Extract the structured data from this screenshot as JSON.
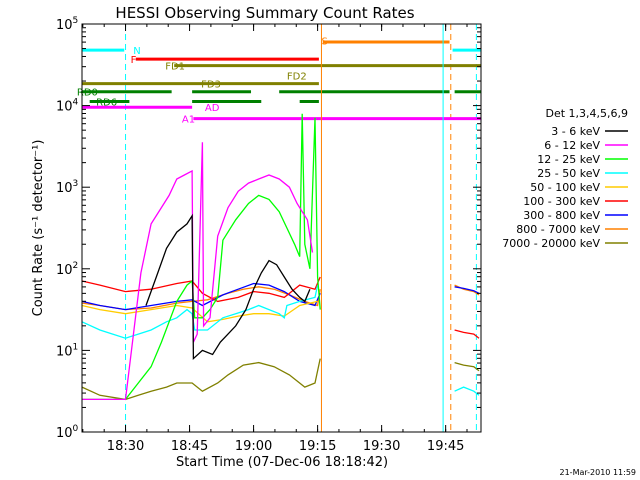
{
  "chart_data": {
    "type": "line",
    "title": "HESSI Observing Summary Count Rates",
    "ylabel": "Count Rate (s⁻¹ detector⁻¹)",
    "xlabel": "Start Time (07-Dec-06 18:18:42)",
    "footer": "21-Mar-2010 11:59",
    "xlim": [
      18.33,
      19.888
    ],
    "ylim_log10": [
      0,
      5
    ],
    "yscale": "log",
    "x_ticks": [
      {
        "value": 18.5,
        "label": "18:30"
      },
      {
        "value": 18.75,
        "label": "18:45"
      },
      {
        "value": 19.0,
        "label": "19:00"
      },
      {
        "value": 19.25,
        "label": "19:15"
      },
      {
        "value": 19.5,
        "label": "19:30"
      },
      {
        "value": 19.75,
        "label": "19:45"
      }
    ],
    "y_ticks": [
      {
        "exp": 0,
        "label": "10",
        "sup": "0"
      },
      {
        "exp": 1,
        "label": "10",
        "sup": "1"
      },
      {
        "exp": 2,
        "label": "10",
        "sup": "2"
      },
      {
        "exp": 3,
        "label": "10",
        "sup": "3"
      },
      {
        "exp": 4,
        "label": "10",
        "sup": "4"
      },
      {
        "exp": 5,
        "label": "10",
        "sup": "5"
      }
    ],
    "legend_header": "Det 1,3,4,5,6,9",
    "legend_position": "right",
    "series": [
      {
        "name": "3 - 6 keV",
        "color": "#000000",
        "points": [
          [
            18.58,
            1.55
          ],
          [
            18.62,
            1.9
          ],
          [
            18.66,
            2.25
          ],
          [
            18.7,
            2.45
          ],
          [
            18.74,
            2.55
          ],
          [
            18.76,
            2.65
          ],
          [
            18.765,
            0.9
          ],
          [
            18.8,
            1.0
          ],
          [
            18.84,
            0.95
          ],
          [
            18.87,
            1.1
          ],
          [
            18.9,
            1.2
          ],
          [
            18.93,
            1.3
          ],
          [
            18.97,
            1.5
          ],
          [
            19.0,
            1.75
          ],
          [
            19.03,
            1.95
          ],
          [
            19.06,
            2.1
          ],
          [
            19.09,
            2.05
          ],
          [
            19.12,
            1.9
          ],
          [
            19.15,
            1.75
          ],
          [
            19.18,
            1.65
          ],
          [
            19.2,
            1.6
          ],
          [
            19.22,
            1.75
          ]
        ]
      },
      {
        "name": "6 - 12 keV",
        "color": "#ff00ff",
        "points": [
          [
            18.33,
            0.4
          ],
          [
            18.5,
            0.4
          ],
          [
            18.56,
            1.95
          ],
          [
            18.6,
            2.55
          ],
          [
            18.64,
            2.75
          ],
          [
            18.67,
            2.9
          ],
          [
            18.7,
            3.1
          ],
          [
            18.73,
            3.15
          ],
          [
            18.76,
            3.2
          ],
          [
            18.765,
            1.1
          ],
          [
            18.78,
            1.2
          ],
          [
            18.8,
            3.55
          ],
          [
            18.805,
            1.3
          ],
          [
            18.83,
            1.4
          ],
          [
            18.86,
            2.4
          ],
          [
            18.9,
            2.75
          ],
          [
            18.94,
            2.95
          ],
          [
            18.98,
            3.05
          ],
          [
            19.02,
            3.1
          ],
          [
            19.06,
            3.15
          ],
          [
            19.1,
            3.1
          ],
          [
            19.14,
            3.0
          ],
          [
            19.17,
            2.8
          ],
          [
            19.19,
            2.7
          ],
          [
            19.21,
            2.6
          ],
          [
            19.23,
            2.2
          ]
        ]
      },
      {
        "name": "12 - 25 keV",
        "color": "#00ff00",
        "points": [
          [
            18.33,
            0.4
          ],
          [
            18.5,
            0.4
          ],
          [
            18.55,
            0.6
          ],
          [
            18.6,
            0.8
          ],
          [
            18.64,
            1.1
          ],
          [
            18.7,
            1.6
          ],
          [
            18.74,
            1.8
          ],
          [
            18.76,
            1.85
          ],
          [
            18.77,
            1.4
          ],
          [
            18.8,
            1.4
          ],
          [
            18.83,
            1.5
          ],
          [
            18.86,
            1.65
          ],
          [
            18.88,
            2.35
          ],
          [
            18.93,
            2.6
          ],
          [
            18.98,
            2.8
          ],
          [
            19.02,
            2.9
          ],
          [
            19.06,
            2.85
          ],
          [
            19.1,
            2.7
          ],
          [
            19.13,
            2.5
          ],
          [
            19.16,
            2.3
          ],
          [
            19.18,
            2.15
          ],
          [
            19.19,
            3.9
          ],
          [
            19.2,
            2.3
          ],
          [
            19.22,
            2.0
          ],
          [
            19.24,
            3.85
          ],
          [
            19.25,
            1.9
          ],
          [
            19.26,
            1.5
          ]
        ]
      },
      {
        "name": "25 - 50 keV",
        "color": "#00ffff",
        "points": [
          [
            18.33,
            1.35
          ],
          [
            18.4,
            1.25
          ],
          [
            18.45,
            1.2
          ],
          [
            18.5,
            1.15
          ],
          [
            18.55,
            1.2
          ],
          [
            18.6,
            1.25
          ],
          [
            18.66,
            1.35
          ],
          [
            18.7,
            1.4
          ],
          [
            18.74,
            1.5
          ],
          [
            18.76,
            1.45
          ],
          [
            18.77,
            1.25
          ],
          [
            18.82,
            1.25
          ],
          [
            18.88,
            1.4
          ],
          [
            18.93,
            1.45
          ],
          [
            18.98,
            1.5
          ],
          [
            19.02,
            1.55
          ],
          [
            19.06,
            1.5
          ],
          [
            19.1,
            1.45
          ],
          [
            19.12,
            1.4
          ],
          [
            19.13,
            1.55
          ],
          [
            19.18,
            1.6
          ],
          [
            19.24,
            1.65
          ],
          [
            19.25,
            1.8
          ]
        ]
      },
      {
        "name": "50 - 100 keV",
        "color": "#ffcc00",
        "points": [
          [
            18.33,
            1.55
          ],
          [
            18.4,
            1.5
          ],
          [
            18.5,
            1.45
          ],
          [
            18.6,
            1.5
          ],
          [
            18.7,
            1.55
          ],
          [
            18.76,
            1.52
          ],
          [
            18.82,
            1.35
          ],
          [
            18.88,
            1.38
          ],
          [
            18.94,
            1.42
          ],
          [
            19.0,
            1.45
          ],
          [
            19.06,
            1.45
          ],
          [
            19.12,
            1.42
          ],
          [
            19.18,
            1.55
          ],
          [
            19.25,
            1.6
          ]
        ]
      },
      {
        "name": "100 - 300 keV",
        "color": "#ff0000",
        "points": [
          [
            18.33,
            1.85
          ],
          [
            18.4,
            1.8
          ],
          [
            18.5,
            1.72
          ],
          [
            18.6,
            1.75
          ],
          [
            18.7,
            1.82
          ],
          [
            18.76,
            1.85
          ],
          [
            18.8,
            1.7
          ],
          [
            18.86,
            1.6
          ],
          [
            18.94,
            1.65
          ],
          [
            19.0,
            1.72
          ],
          [
            19.06,
            1.7
          ],
          [
            19.12,
            1.65
          ],
          [
            19.18,
            1.8
          ],
          [
            19.24,
            1.75
          ],
          [
            19.26,
            1.9
          ]
        ]
      },
      {
        "name": "300 - 800 keV",
        "color": "#0000ff",
        "points": [
          [
            18.33,
            1.6
          ],
          [
            18.4,
            1.55
          ],
          [
            18.5,
            1.5
          ],
          [
            18.6,
            1.55
          ],
          [
            18.7,
            1.6
          ],
          [
            18.76,
            1.62
          ],
          [
            18.8,
            1.55
          ],
          [
            18.88,
            1.68
          ],
          [
            18.94,
            1.75
          ],
          [
            19.0,
            1.82
          ],
          [
            19.06,
            1.8
          ],
          [
            19.12,
            1.72
          ],
          [
            19.18,
            1.6
          ],
          [
            19.24,
            1.55
          ],
          [
            19.26,
            1.7
          ]
        ]
      },
      {
        "name": "800 - 7000 keV",
        "color": "#ff8000",
        "points": [
          [
            18.33,
            1.58
          ],
          [
            18.4,
            1.55
          ],
          [
            18.5,
            1.5
          ],
          [
            18.6,
            1.52
          ],
          [
            18.7,
            1.58
          ],
          [
            18.76,
            1.6
          ],
          [
            18.82,
            1.62
          ],
          [
            18.9,
            1.7
          ],
          [
            18.96,
            1.75
          ],
          [
            19.02,
            1.78
          ],
          [
            19.08,
            1.75
          ],
          [
            19.14,
            1.68
          ],
          [
            19.2,
            1.6
          ],
          [
            19.25,
            1.55
          ],
          [
            19.26,
            1.75
          ]
        ]
      },
      {
        "name": "7000 - 20000 keV",
        "color": "#808000",
        "points": [
          [
            18.33,
            0.55
          ],
          [
            18.4,
            0.45
          ],
          [
            18.5,
            0.4
          ],
          [
            18.55,
            0.45
          ],
          [
            18.6,
            0.5
          ],
          [
            18.66,
            0.55
          ],
          [
            18.7,
            0.6
          ],
          [
            18.76,
            0.6
          ],
          [
            18.8,
            0.5
          ],
          [
            18.86,
            0.6
          ],
          [
            18.9,
            0.7
          ],
          [
            18.96,
            0.82
          ],
          [
            19.02,
            0.85
          ],
          [
            19.08,
            0.8
          ],
          [
            19.14,
            0.7
          ],
          [
            19.2,
            0.55
          ],
          [
            19.24,
            0.6
          ],
          [
            19.26,
            0.9
          ]
        ]
      }
    ],
    "post_gap_segments": [
      {
        "series": "800 - 7000 keV",
        "color": "#ff8000",
        "points": [
          [
            19.785,
            1.8
          ],
          [
            19.82,
            1.75
          ],
          [
            19.86,
            1.72
          ],
          [
            19.88,
            1.68
          ]
        ]
      },
      {
        "series": "300 - 800 keV",
        "color": "#0000ff",
        "points": [
          [
            19.785,
            1.78
          ],
          [
            19.82,
            1.76
          ],
          [
            19.86,
            1.73
          ],
          [
            19.88,
            1.7
          ]
        ]
      },
      {
        "series": "100 - 300 keV",
        "color": "#ff0000",
        "points": [
          [
            19.785,
            1.25
          ],
          [
            19.82,
            1.22
          ],
          [
            19.86,
            1.2
          ],
          [
            19.88,
            1.15
          ]
        ]
      },
      {
        "series": "7000 - 20000 keV",
        "color": "#808000",
        "points": [
          [
            19.785,
            0.85
          ],
          [
            19.82,
            0.82
          ],
          [
            19.86,
            0.8
          ],
          [
            19.88,
            0.75
          ]
        ]
      },
      {
        "series": "25 - 50 keV",
        "color": "#00ffff",
        "points": [
          [
            19.785,
            0.5
          ],
          [
            19.82,
            0.55
          ],
          [
            19.86,
            0.5
          ],
          [
            19.88,
            0.45
          ]
        ]
      }
    ],
    "flags": [
      {
        "label": "N",
        "label_x": 18.53,
        "label_y_log": 4.68,
        "color": "#00ffff",
        "segments": [
          [
            18.33,
            18.495,
            4.68
          ],
          [
            19.777,
            19.888,
            4.68
          ]
        ],
        "dashed_markers": [
          18.5,
          19.87
        ]
      },
      {
        "label": "S",
        "label_x": 19.265,
        "label_y_log": 4.8,
        "color": "#ff8000",
        "segments": [
          [
            19.27,
            19.765,
            4.78
          ]
        ],
        "dashed_markers": [
          19.77
        ]
      },
      {
        "label": "F",
        "label_x": 18.52,
        "label_y_log": 4.57,
        "color": "#ff0000",
        "segments": [
          [
            18.54,
            19.255,
            4.57
          ]
        ]
      },
      {
        "label": "FD1",
        "label_x": 18.655,
        "label_y_log": 4.49,
        "color": "#808000",
        "segments": [
          [
            18.69,
            19.888,
            4.49
          ]
        ]
      },
      {
        "label": "FD2",
        "label_x": 19.13,
        "label_y_log": 4.37,
        "color": "#808000",
        "segments": []
      },
      {
        "label": "FD3",
        "label_x": 18.795,
        "label_y_log": 4.27,
        "color": "#808000",
        "segments": [
          [
            18.33,
            19.255,
            4.27
          ]
        ]
      },
      {
        "label": "RD0",
        "label_x": 18.31,
        "label_y_log": 4.17,
        "color": "#008000",
        "segments": [
          [
            18.33,
            18.68,
            4.17
          ],
          [
            18.76,
            18.99,
            4.17
          ],
          [
            19.1,
            19.765,
            4.17
          ],
          [
            19.785,
            19.888,
            4.17
          ]
        ]
      },
      {
        "label": "RD6",
        "label_x": 18.385,
        "label_y_log": 4.05,
        "color": "#008000",
        "segments": [
          [
            18.36,
            18.515,
            4.05
          ],
          [
            18.76,
            19.03,
            4.05
          ],
          [
            19.18,
            19.255,
            4.05
          ]
        ]
      },
      {
        "label": "AD",
        "label_x": 18.81,
        "label_y_log": 3.98,
        "color": "#ff00ff",
        "segments": [
          [
            18.33,
            18.76,
            3.98
          ]
        ]
      },
      {
        "label": "A1",
        "label_x": 18.72,
        "label_y_log": 3.84,
        "color": "#ff00ff",
        "segments": [
          [
            18.765,
            19.888,
            3.84
          ]
        ]
      }
    ]
  }
}
